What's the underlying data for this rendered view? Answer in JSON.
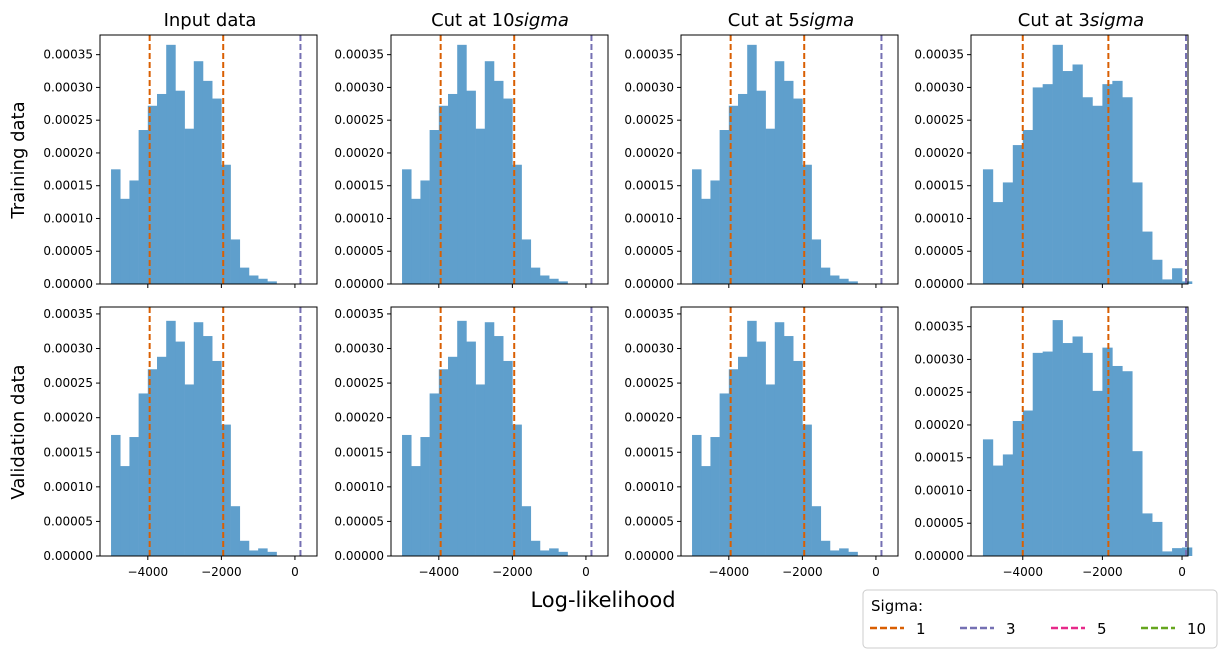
{
  "figure": {
    "xlabel": "Log-likelihood",
    "row_labels": [
      "Training data",
      "Validation data"
    ],
    "col_titles": [
      {
        "text": "Input data",
        "sigma_value": ""
      },
      {
        "text": "Cut at ",
        "sigma_value": "10"
      },
      {
        "text": "Cut at ",
        "sigma_value": "5"
      },
      {
        "text": "Cut at ",
        "sigma_value": "3"
      }
    ],
    "sigma_word": "sigma"
  },
  "legend": {
    "title": "Sigma:",
    "items": [
      {
        "label": "1",
        "color": "#d95f02"
      },
      {
        "label": "3",
        "color": "#7570b3"
      },
      {
        "label": "5",
        "color": "#e7298a"
      },
      {
        "label": "10",
        "color": "#66a61e"
      }
    ]
  },
  "colors": {
    "bar": "#5f9fcc",
    "sigma1": "#d95f02",
    "sigma3": "#7570b3"
  },
  "chart_data": [
    {
      "type": "bar",
      "row": "Training data",
      "column": "Input data",
      "bin_start": -5000,
      "bin_width": 250,
      "values": [
        0.000175,
        0.00013,
        0.000158,
        0.000235,
        0.000272,
        0.00029,
        0.000365,
        0.000295,
        0.000237,
        0.00034,
        0.00031,
        0.000283,
        0.000182,
        6.8e-05,
        2.5e-05,
        1.3e-05,
        8e-06,
        4e-06
      ],
      "ylim": [
        0,
        0.00038
      ],
      "yticks": [
        0,
        5e-05,
        0.0001,
        0.00015,
        0.0002,
        0.00025,
        0.0003,
        0.00035
      ],
      "xlim": [
        -5300,
        600
      ],
      "xticks": [
        -4000,
        -2000,
        0
      ],
      "vlines": [
        {
          "sigma": "1",
          "x": -3950
        },
        {
          "sigma": "1",
          "x": -1950
        },
        {
          "sigma": "3",
          "x": 150
        }
      ]
    },
    {
      "type": "bar",
      "row": "Training data",
      "column": "Cut at 10sigma",
      "bin_start": -5000,
      "bin_width": 250,
      "values": [
        0.000175,
        0.00013,
        0.000158,
        0.000235,
        0.000272,
        0.00029,
        0.000365,
        0.000295,
        0.000237,
        0.00034,
        0.00031,
        0.000283,
        0.000182,
        6.8e-05,
        2.5e-05,
        1.3e-05,
        8e-06,
        4e-06
      ],
      "ylim": [
        0,
        0.00038
      ],
      "yticks": [
        0,
        5e-05,
        0.0001,
        0.00015,
        0.0002,
        0.00025,
        0.0003,
        0.00035
      ],
      "xlim": [
        -5300,
        600
      ],
      "xticks": [
        -4000,
        -2000,
        0
      ],
      "vlines": [
        {
          "sigma": "1",
          "x": -3950
        },
        {
          "sigma": "1",
          "x": -1950
        },
        {
          "sigma": "3",
          "x": 150
        }
      ]
    },
    {
      "type": "bar",
      "row": "Training data",
      "column": "Cut at 5sigma",
      "bin_start": -5000,
      "bin_width": 250,
      "values": [
        0.000175,
        0.00013,
        0.000158,
        0.000235,
        0.000272,
        0.00029,
        0.000365,
        0.000295,
        0.000237,
        0.00034,
        0.00031,
        0.000283,
        0.000182,
        6.8e-05,
        2.5e-05,
        1.3e-05,
        8e-06,
        4e-06
      ],
      "ylim": [
        0,
        0.00038
      ],
      "yticks": [
        0,
        5e-05,
        0.0001,
        0.00015,
        0.0002,
        0.00025,
        0.0003,
        0.00035
      ],
      "xlim": [
        -5300,
        600
      ],
      "xticks": [
        -4000,
        -2000,
        0
      ],
      "vlines": [
        {
          "sigma": "1",
          "x": -3950
        },
        {
          "sigma": "1",
          "x": -1950
        },
        {
          "sigma": "3",
          "x": 150
        }
      ]
    },
    {
      "type": "bar",
      "row": "Training data",
      "column": "Cut at 3sigma",
      "bin_start": -5000,
      "bin_width": 250,
      "values": [
        0.000175,
        0.000125,
        0.000155,
        0.000212,
        0.000235,
        0.0003,
        0.000305,
        0.000365,
        0.000325,
        0.000335,
        0.000285,
        0.000272,
        0.000305,
        0.00031,
        0.000285,
        0.000155,
        8e-05,
        3.7e-05,
        7e-06,
        2.4e-05,
        4e-06
      ],
      "ylim": [
        0,
        0.00038
      ],
      "yticks": [
        0,
        5e-05,
        0.0001,
        0.00015,
        0.0002,
        0.00025,
        0.0003,
        0.00035
      ],
      "xlim": [
        -5300,
        150
      ],
      "xticks": [
        -4000,
        -2000,
        0
      ],
      "vlines": [
        {
          "sigma": "1",
          "x": -4000
        },
        {
          "sigma": "1",
          "x": -1850
        },
        {
          "sigma": "3",
          "x": 100
        }
      ]
    },
    {
      "type": "bar",
      "row": "Validation data",
      "column": "Input data",
      "bin_start": -5000,
      "bin_width": 250,
      "values": [
        0.000175,
        0.00013,
        0.000172,
        0.000235,
        0.00027,
        0.000288,
        0.00034,
        0.00031,
        0.000248,
        0.000338,
        0.000318,
        0.000282,
        0.00019,
        7.2e-05,
        2.2e-05,
        8e-06,
        1.1e-05,
        6e-06
      ],
      "ylim": [
        0,
        0.00036
      ],
      "yticks": [
        0,
        5e-05,
        0.0001,
        0.00015,
        0.0002,
        0.00025,
        0.0003,
        0.00035
      ],
      "xlim": [
        -5300,
        600
      ],
      "xticks": [
        -4000,
        -2000,
        0
      ],
      "vlines": [
        {
          "sigma": "1",
          "x": -3950
        },
        {
          "sigma": "1",
          "x": -1950
        },
        {
          "sigma": "3",
          "x": 150
        }
      ]
    },
    {
      "type": "bar",
      "row": "Validation data",
      "column": "Cut at 10sigma",
      "bin_start": -5000,
      "bin_width": 250,
      "values": [
        0.000175,
        0.00013,
        0.000172,
        0.000235,
        0.00027,
        0.000288,
        0.00034,
        0.00031,
        0.000248,
        0.000338,
        0.000318,
        0.000282,
        0.00019,
        7.2e-05,
        2.2e-05,
        8e-06,
        1.1e-05,
        6e-06
      ],
      "ylim": [
        0,
        0.00036
      ],
      "yticks": [
        0,
        5e-05,
        0.0001,
        0.00015,
        0.0002,
        0.00025,
        0.0003,
        0.00035
      ],
      "xlim": [
        -5300,
        600
      ],
      "xticks": [
        -4000,
        -2000,
        0
      ],
      "vlines": [
        {
          "sigma": "1",
          "x": -3950
        },
        {
          "sigma": "1",
          "x": -1950
        },
        {
          "sigma": "3",
          "x": 150
        }
      ]
    },
    {
      "type": "bar",
      "row": "Validation data",
      "column": "Cut at 5sigma",
      "bin_start": -5000,
      "bin_width": 250,
      "values": [
        0.000175,
        0.00013,
        0.000172,
        0.000235,
        0.00027,
        0.000288,
        0.00034,
        0.00031,
        0.000248,
        0.000338,
        0.000318,
        0.000282,
        0.00019,
        7.2e-05,
        2.2e-05,
        8e-06,
        1.1e-05,
        6e-06
      ],
      "ylim": [
        0,
        0.00036
      ],
      "yticks": [
        0,
        5e-05,
        0.0001,
        0.00015,
        0.0002,
        0.00025,
        0.0003,
        0.00035
      ],
      "xlim": [
        -5300,
        600
      ],
      "xticks": [
        -4000,
        -2000,
        0
      ],
      "vlines": [
        {
          "sigma": "1",
          "x": -3950
        },
        {
          "sigma": "1",
          "x": -1950
        },
        {
          "sigma": "3",
          "x": 150
        }
      ]
    },
    {
      "type": "bar",
      "row": "Validation data",
      "column": "Cut at 3sigma",
      "bin_start": -5000,
      "bin_width": 250,
      "values": [
        0.000178,
        0.000138,
        0.000155,
        0.000206,
        0.000222,
        0.00031,
        0.000312,
        0.00036,
        0.000325,
        0.000335,
        0.00031,
        0.000252,
        0.000318,
        0.00029,
        0.000282,
        0.00016,
        6.5e-05,
        5.2e-05,
        7e-06,
        1.2e-05,
        1.3e-05
      ],
      "ylim": [
        0,
        0.00038
      ],
      "yticks": [
        0,
        5e-05,
        0.0001,
        0.00015,
        0.0002,
        0.00025,
        0.0003,
        0.00035
      ],
      "xlim": [
        -5300,
        150
      ],
      "xticks": [
        -4000,
        -2000,
        0
      ],
      "vlines": [
        {
          "sigma": "1",
          "x": -4000
        },
        {
          "sigma": "1",
          "x": -1850
        },
        {
          "sigma": "3",
          "x": 100
        }
      ]
    }
  ]
}
